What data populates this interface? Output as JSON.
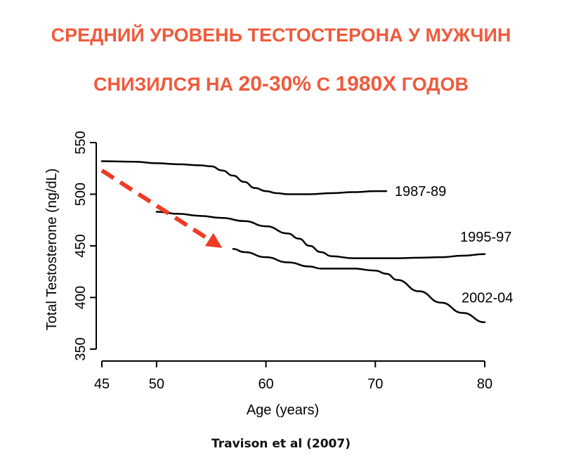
{
  "title": {
    "line1": "СРЕДНИЙ УРОВЕНЬ ТЕСТОСТЕРОНА У МУЖЧИН",
    "line2_pre": "СНИЗИЛСЯ НА ",
    "line2_pct": "20-30%",
    "line2_mid": " С ",
    "line2_year": "1980Х",
    "line2_post": " ГОДОВ"
  },
  "citation": "Travison et al (2007)",
  "colors": {
    "title": "#ef5a3c",
    "arrow": "#ef3b24",
    "lines": "#000000"
  },
  "chart_data": {
    "type": "line",
    "xlabel": "Age (years)",
    "ylabel": "Total Testosterone (ng/dL)",
    "xlim": [
      45,
      80
    ],
    "ylim": [
      350,
      550
    ],
    "x_ticks": [
      45,
      50,
      60,
      70,
      80
    ],
    "y_ticks": [
      350,
      400,
      450,
      500,
      550
    ],
    "grid": false,
    "series": [
      {
        "name": "1987-89",
        "x": [
          45,
          48,
          50,
          52,
          54,
          55,
          56,
          57,
          58,
          59,
          60,
          61,
          62,
          64,
          66,
          68,
          70,
          71
        ],
        "y": [
          532,
          531.5,
          530,
          529,
          528,
          527,
          523,
          518,
          512,
          506,
          503,
          501,
          500,
          500,
          501,
          502,
          503,
          503
        ]
      },
      {
        "name": "1995-97",
        "x": [
          50,
          52,
          54,
          56,
          58,
          60,
          62,
          63,
          64,
          65,
          66,
          68,
          70,
          72,
          74,
          76,
          78,
          80
        ],
        "y": [
          483,
          481,
          479,
          477,
          474,
          469,
          462,
          457,
          450,
          444,
          440,
          438,
          438,
          438,
          438.5,
          439,
          440.5,
          442
        ]
      },
      {
        "name": "2002-04",
        "x": [
          57,
          58,
          60,
          62,
          64,
          65,
          66,
          68,
          70,
          71,
          72,
          74,
          76,
          78,
          80
        ],
        "y": [
          447,
          444,
          439,
          434,
          430,
          428,
          428,
          428,
          426,
          423,
          417,
          406,
          395,
          385,
          376
        ]
      }
    ],
    "annotations": [
      {
        "type": "dashed-arrow",
        "from": [
          45,
          523
        ],
        "to": [
          56,
          448
        ]
      }
    ]
  }
}
